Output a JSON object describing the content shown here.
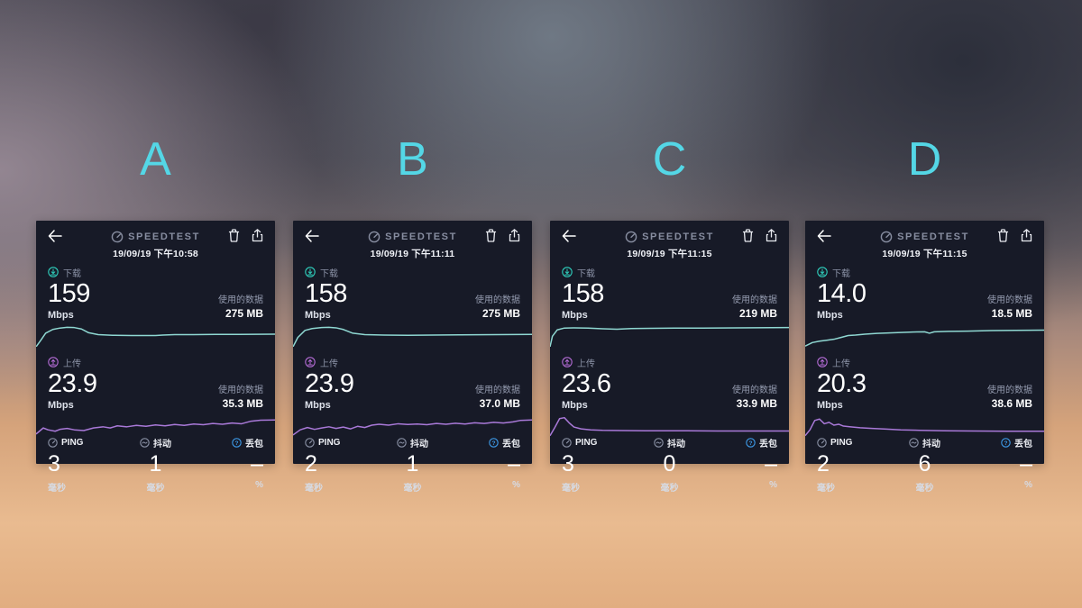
{
  "app": {
    "brand": "SPEEDTEST",
    "download_label": "下载",
    "upload_label": "上传",
    "mbps_unit": "Mbps",
    "data_used_label": "使用的数据",
    "ping_label": "PING",
    "jitter_label": "抖动",
    "loss_label": "丢包",
    "ms_unit": "毫秒",
    "percent_unit": "%"
  },
  "colors": {
    "panel_label_cyan": "#54d7e6",
    "card_background": "#171a27",
    "brand_gray": "#878da0",
    "download_accent": "#2fd0bd",
    "download_line": "#8fd8d2",
    "upload_accent": "#b36bd4",
    "upload_line": "#a979d8",
    "loss_icon_blue": "#3d9ae8",
    "background_top": "#4b4a55",
    "background_bottom": "#e4b287"
  },
  "icons": [
    "back-arrow-icon",
    "gauge-icon",
    "trash-icon",
    "share-icon",
    "download-circle-icon",
    "upload-circle-icon",
    "ping-icon",
    "jitter-icon",
    "loss-help-icon"
  ],
  "panels": [
    {
      "letter": "A",
      "datetime": "19/09/19 下午10:58",
      "download": {
        "value": "159",
        "data_used": "275 MB"
      },
      "upload": {
        "value": "23.9",
        "data_used": "35.3 MB"
      },
      "ping": "3",
      "jitter": "1",
      "loss": "–",
      "charts": {
        "download": [
          [
            0,
            100
          ],
          [
            2,
            72
          ],
          [
            4,
            42
          ],
          [
            7,
            26
          ],
          [
            10,
            20
          ],
          [
            13,
            17
          ],
          [
            16,
            18
          ],
          [
            19,
            24
          ],
          [
            22,
            40
          ],
          [
            26,
            48
          ],
          [
            32,
            51
          ],
          [
            40,
            52
          ],
          [
            50,
            52
          ],
          [
            53,
            50
          ],
          [
            58,
            48
          ],
          [
            66,
            48
          ],
          [
            75,
            47
          ],
          [
            85,
            47
          ],
          [
            100,
            46
          ]
        ],
        "upload": [
          [
            0,
            88
          ],
          [
            3,
            62
          ],
          [
            5,
            70
          ],
          [
            8,
            76
          ],
          [
            10,
            68
          ],
          [
            13,
            64
          ],
          [
            16,
            70
          ],
          [
            20,
            73
          ],
          [
            24,
            62
          ],
          [
            28,
            57
          ],
          [
            31,
            62
          ],
          [
            34,
            53
          ],
          [
            38,
            57
          ],
          [
            42,
            51
          ],
          [
            46,
            55
          ],
          [
            50,
            49
          ],
          [
            54,
            53
          ],
          [
            58,
            47
          ],
          [
            62,
            51
          ],
          [
            66,
            45
          ],
          [
            70,
            48
          ],
          [
            74,
            43
          ],
          [
            78,
            46
          ],
          [
            82,
            41
          ],
          [
            86,
            44
          ],
          [
            90,
            33
          ],
          [
            94,
            29
          ],
          [
            100,
            28
          ]
        ]
      }
    },
    {
      "letter": "B",
      "datetime": "19/09/19 下午11:11",
      "download": {
        "value": "158",
        "data_used": "275 MB"
      },
      "upload": {
        "value": "23.9",
        "data_used": "37.0 MB"
      },
      "ping": "2",
      "jitter": "1",
      "loss": "–",
      "charts": {
        "download": [
          [
            0,
            100
          ],
          [
            2,
            60
          ],
          [
            5,
            30
          ],
          [
            8,
            22
          ],
          [
            12,
            18
          ],
          [
            15,
            17
          ],
          [
            18,
            19
          ],
          [
            21,
            26
          ],
          [
            25,
            42
          ],
          [
            30,
            48
          ],
          [
            38,
            50
          ],
          [
            48,
            51
          ],
          [
            58,
            50
          ],
          [
            70,
            49
          ],
          [
            85,
            48
          ],
          [
            100,
            47
          ]
        ],
        "upload": [
          [
            0,
            92
          ],
          [
            3,
            70
          ],
          [
            6,
            60
          ],
          [
            9,
            68
          ],
          [
            12,
            62
          ],
          [
            15,
            57
          ],
          [
            18,
            64
          ],
          [
            21,
            58
          ],
          [
            24,
            66
          ],
          [
            27,
            55
          ],
          [
            30,
            60
          ],
          [
            33,
            50
          ],
          [
            36,
            46
          ],
          [
            40,
            50
          ],
          [
            44,
            44
          ],
          [
            48,
            47
          ],
          [
            52,
            45
          ],
          [
            56,
            48
          ],
          [
            60,
            43
          ],
          [
            64,
            46
          ],
          [
            68,
            42
          ],
          [
            72,
            45
          ],
          [
            76,
            40
          ],
          [
            80,
            43
          ],
          [
            84,
            38
          ],
          [
            88,
            41
          ],
          [
            92,
            36
          ],
          [
            95,
            30
          ],
          [
            100,
            28
          ]
        ]
      }
    },
    {
      "letter": "C",
      "datetime": "19/09/19 下午11:15",
      "download": {
        "value": "158",
        "data_used": "219 MB"
      },
      "upload": {
        "value": "23.6",
        "data_used": "33.9 MB"
      },
      "ping": "3",
      "jitter": "0",
      "loss": "–",
      "charts": {
        "download": [
          [
            0,
            100
          ],
          [
            1,
            55
          ],
          [
            3,
            28
          ],
          [
            6,
            20
          ],
          [
            10,
            19
          ],
          [
            16,
            20
          ],
          [
            22,
            23
          ],
          [
            28,
            25
          ],
          [
            34,
            22
          ],
          [
            42,
            21
          ],
          [
            52,
            20
          ],
          [
            64,
            20
          ],
          [
            78,
            19
          ],
          [
            100,
            18
          ]
        ],
        "upload": [
          [
            0,
            95
          ],
          [
            2,
            60
          ],
          [
            4,
            22
          ],
          [
            6,
            18
          ],
          [
            8,
            40
          ],
          [
            10,
            58
          ],
          [
            13,
            66
          ],
          [
            17,
            70
          ],
          [
            22,
            72
          ],
          [
            30,
            73
          ],
          [
            40,
            74
          ],
          [
            55,
            74
          ],
          [
            70,
            75
          ],
          [
            85,
            75
          ],
          [
            100,
            75
          ]
        ]
      }
    },
    {
      "letter": "D",
      "datetime": "19/09/19 下午11:15",
      "download": {
        "value": "14.0",
        "data_used": "18.5 MB"
      },
      "upload": {
        "value": "20.3",
        "data_used": "38.6 MB"
      },
      "ping": "2",
      "jitter": "6",
      "loss": "–",
      "charts": {
        "download": [
          [
            0,
            97
          ],
          [
            3,
            82
          ],
          [
            6,
            76
          ],
          [
            9,
            72
          ],
          [
            12,
            68
          ],
          [
            15,
            60
          ],
          [
            18,
            52
          ],
          [
            21,
            50
          ],
          [
            25,
            46
          ],
          [
            30,
            43
          ],
          [
            35,
            41
          ],
          [
            40,
            39
          ],
          [
            45,
            37
          ],
          [
            50,
            36
          ],
          [
            52,
            42
          ],
          [
            54,
            36
          ],
          [
            60,
            34
          ],
          [
            68,
            33
          ],
          [
            78,
            31
          ],
          [
            88,
            30
          ],
          [
            100,
            29
          ]
        ],
        "upload": [
          [
            0,
            95
          ],
          [
            2,
            70
          ],
          [
            4,
            30
          ],
          [
            6,
            24
          ],
          [
            8,
            44
          ],
          [
            10,
            38
          ],
          [
            12,
            50
          ],
          [
            14,
            46
          ],
          [
            16,
            54
          ],
          [
            19,
            57
          ],
          [
            23,
            61
          ],
          [
            28,
            64
          ],
          [
            34,
            67
          ],
          [
            40,
            70
          ],
          [
            48,
            72
          ],
          [
            58,
            74
          ],
          [
            70,
            75
          ],
          [
            85,
            76
          ],
          [
            100,
            76
          ]
        ]
      }
    }
  ]
}
